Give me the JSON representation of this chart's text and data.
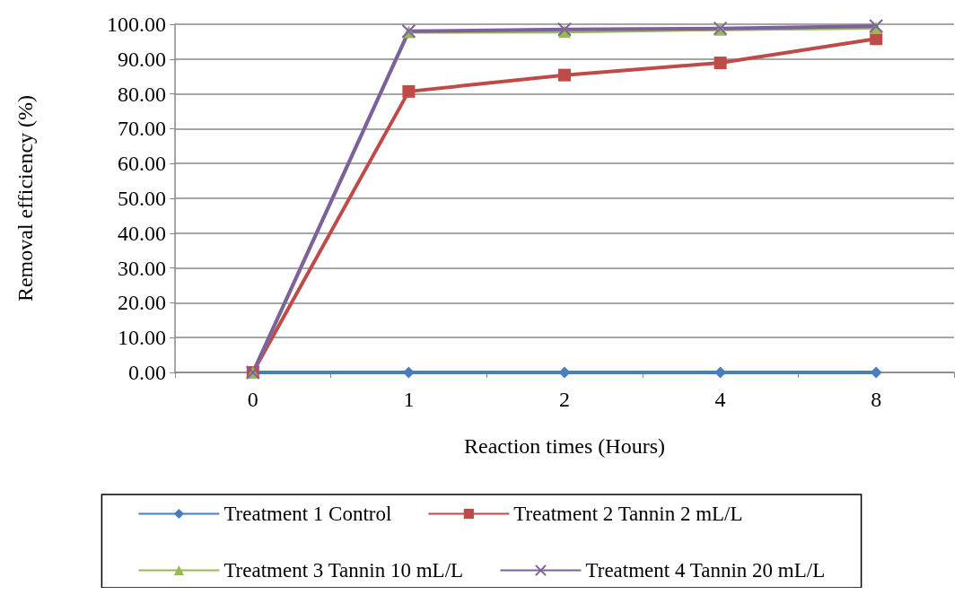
{
  "chart_data": {
    "type": "line",
    "xlabel": "Reaction times (Hours)",
    "ylabel": "Removal efficiency (%)",
    "categories": [
      "0",
      "1",
      "2",
      "4",
      "8"
    ],
    "ylim": [
      0,
      100
    ],
    "yticks": [
      {
        "value": 0,
        "label": "0.00"
      },
      {
        "value": 10,
        "label": "10.00"
      },
      {
        "value": 20,
        "label": "20.00"
      },
      {
        "value": 30,
        "label": "30.00"
      },
      {
        "value": 40,
        "label": "40.00"
      },
      {
        "value": 50,
        "label": "50.00"
      },
      {
        "value": 60,
        "label": "60.00"
      },
      {
        "value": 70,
        "label": "70.00"
      },
      {
        "value": 80,
        "label": "80.00"
      },
      {
        "value": 90,
        "label": "90.00"
      },
      {
        "value": 100,
        "label": "100.00"
      }
    ],
    "grid": "y",
    "legend": "bottom",
    "line_style": "solid",
    "series": [
      {
        "name": "Treatment 1 Control",
        "color": "#4a7ebb",
        "marker": "diamond",
        "values": [
          0,
          0,
          0,
          0,
          0
        ]
      },
      {
        "name": "Treatment 2 Tannin 2 mL/L",
        "color": "#be4b48",
        "marker": "square",
        "values": [
          0,
          80.7,
          85.4,
          88.9,
          95.8
        ]
      },
      {
        "name": "Treatment 3 Tannin 10 mL/L",
        "color": "#98b954",
        "marker": "triangle",
        "values": [
          0,
          97.8,
          97.9,
          98.5,
          99.0
        ]
      },
      {
        "name": "Treatment 4 Tannin 20 mL/L",
        "color": "#7d60a0",
        "marker": "cross",
        "values": [
          0,
          98.0,
          98.5,
          98.8,
          99.5
        ]
      }
    ]
  }
}
